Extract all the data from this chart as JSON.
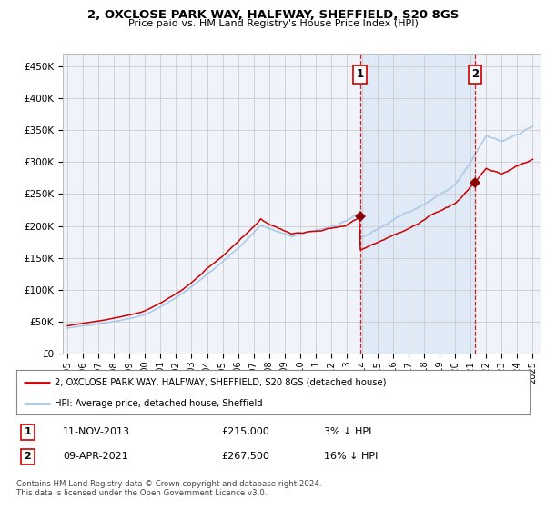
{
  "title": "2, OXCLOSE PARK WAY, HALFWAY, SHEFFIELD, S20 8GS",
  "subtitle": "Price paid vs. HM Land Registry's House Price Index (HPI)",
  "ylabel_ticks": [
    "£0",
    "£50K",
    "£100K",
    "£150K",
    "£200K",
    "£250K",
    "£300K",
    "£350K",
    "£400K",
    "£450K"
  ],
  "ytick_values": [
    0,
    50000,
    100000,
    150000,
    200000,
    250000,
    300000,
    350000,
    400000,
    450000
  ],
  "ylim": [
    0,
    470000
  ],
  "xlim_start": 1994.7,
  "xlim_end": 2025.5,
  "hpi_color": "#a8c8e8",
  "property_color": "#cc0000",
  "vline_color": "#cc0000",
  "marker1_x": 2013.86,
  "marker1_y": 215000,
  "marker2_x": 2021.27,
  "marker2_y": 267500,
  "legend_line1": "2, OXCLOSE PARK WAY, HALFWAY, SHEFFIELD, S20 8GS (detached house)",
  "legend_line2": "HPI: Average price, detached house, Sheffield",
  "note1_label": "1",
  "note1_date": "11-NOV-2013",
  "note1_price": "£215,000",
  "note1_hpi": "3% ↓ HPI",
  "note2_label": "2",
  "note2_date": "09-APR-2021",
  "note2_price": "£267,500",
  "note2_hpi": "16% ↓ HPI",
  "footer": "Contains HM Land Registry data © Crown copyright and database right 2024.\nThis data is licensed under the Open Government Licence v3.0.",
  "background_color": "#ffffff",
  "grid_color": "#cccccc"
}
